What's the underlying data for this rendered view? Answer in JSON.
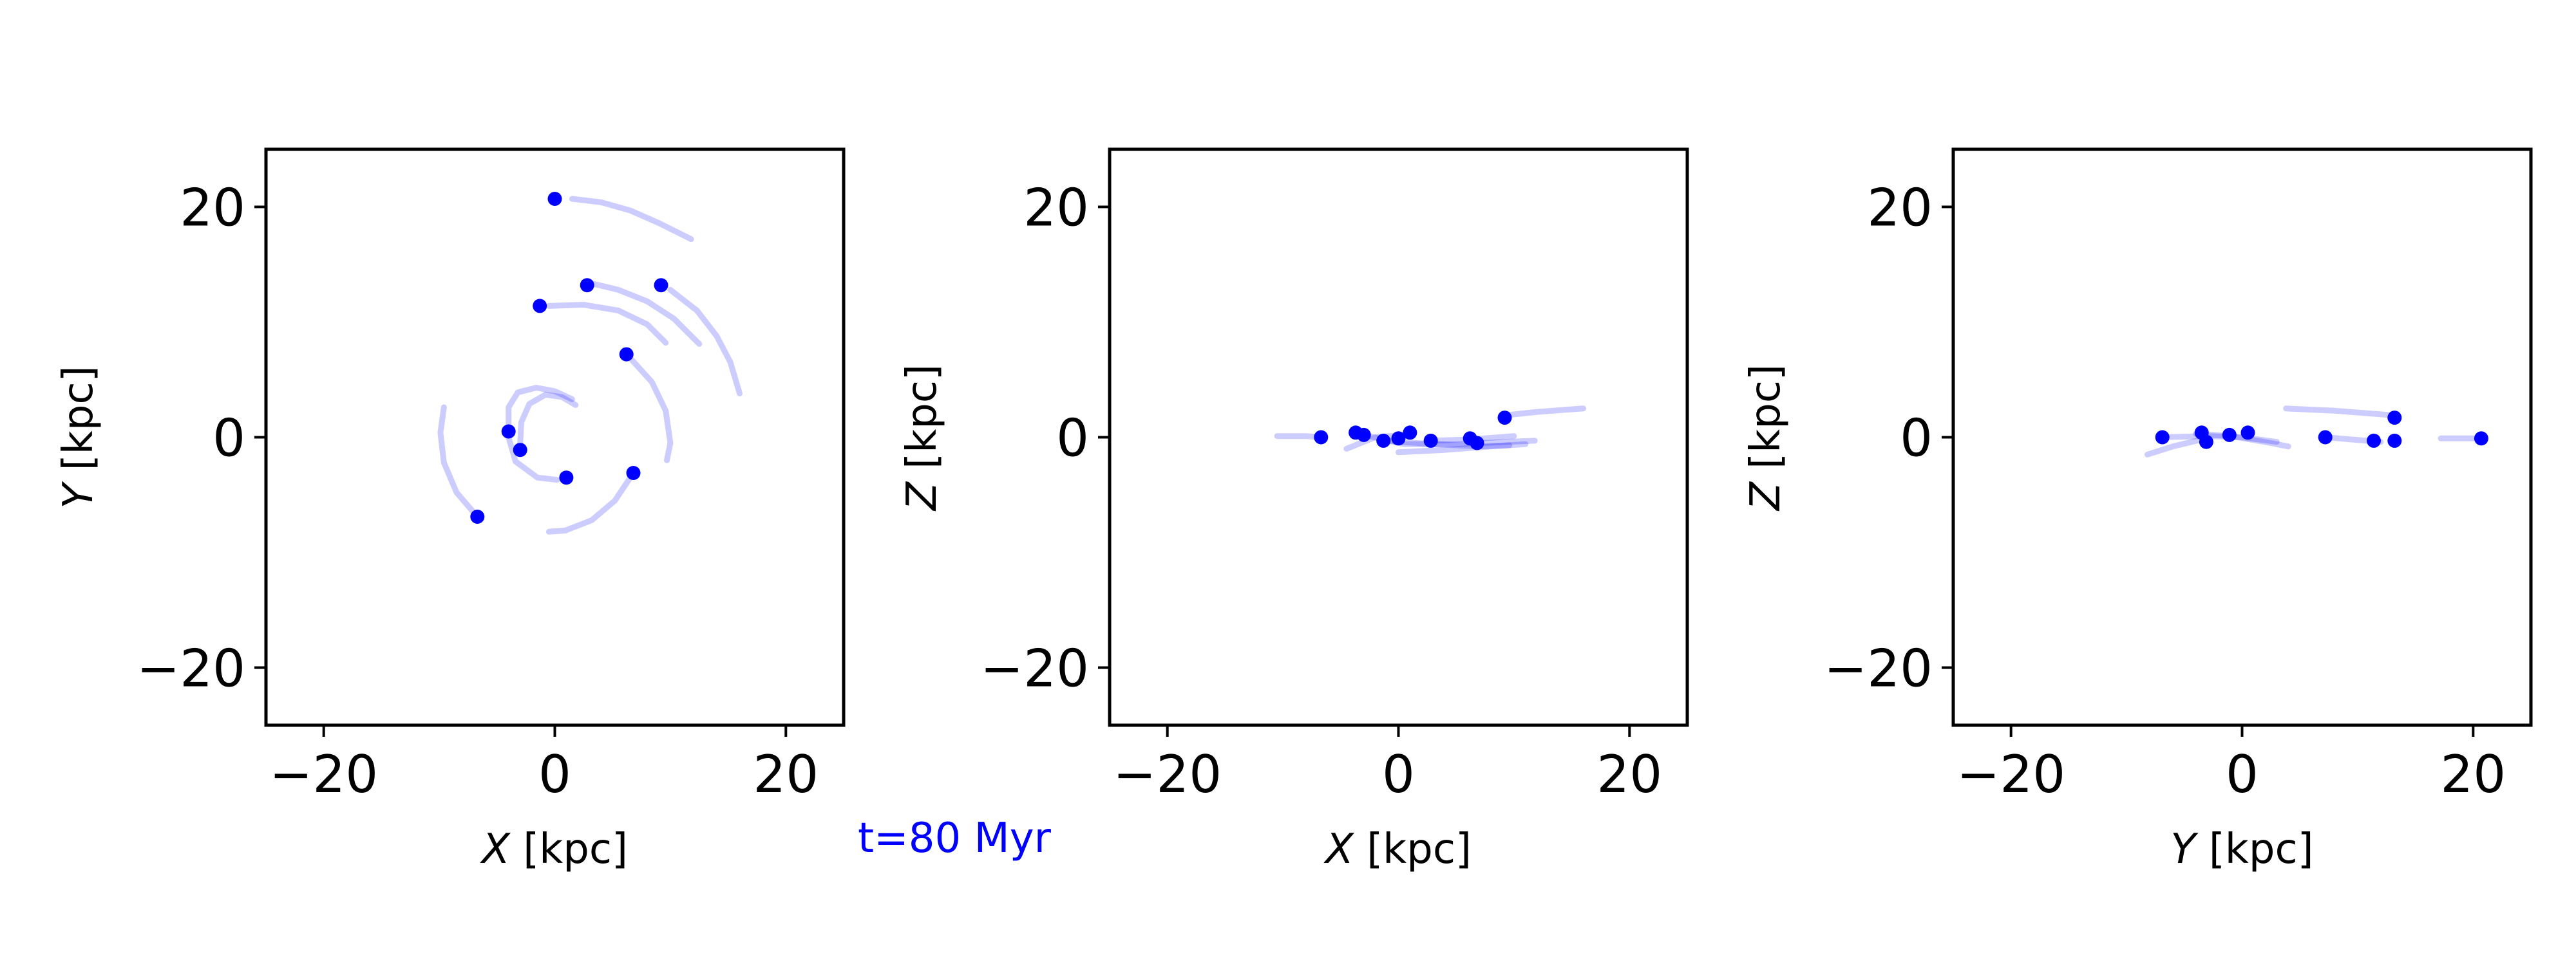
{
  "annotation": {
    "text": "t=80 Myr",
    "color": "#0000ff"
  },
  "colors": {
    "point": "#0000ff",
    "trail": "#0000ff",
    "frame": "#000000"
  },
  "chart_data": [
    {
      "type": "scatter",
      "xlabel_var": "X",
      "xlabel_unit": " [kpc]",
      "ylabel_var": "Y",
      "ylabel_unit": " [kpc]",
      "xlim": [
        -25,
        25
      ],
      "ylim": [
        -25,
        25
      ],
      "xticks": [
        -20,
        0,
        20
      ],
      "yticks": [
        -20,
        0,
        20
      ],
      "grid": false,
      "points": [
        {
          "x": 0.0,
          "y": 20.7
        },
        {
          "x": 2.8,
          "y": 13.2
        },
        {
          "x": 9.2,
          "y": 13.2
        },
        {
          "x": -1.3,
          "y": 11.4
        },
        {
          "x": 6.2,
          "y": 7.2
        },
        {
          "x": -4.0,
          "y": 0.5
        },
        {
          "x": -3.0,
          "y": -1.1
        },
        {
          "x": 1.0,
          "y": -3.5
        },
        {
          "x": 6.8,
          "y": -3.1
        },
        {
          "x": -6.7,
          "y": -6.9
        }
      ],
      "trails": [
        [
          [
            1.5,
            20.7
          ],
          [
            4.0,
            20.4
          ],
          [
            6.5,
            19.7
          ],
          [
            9.0,
            18.6
          ],
          [
            11.8,
            17.2
          ]
        ],
        [
          [
            3.0,
            13.4
          ],
          [
            5.5,
            12.8
          ],
          [
            8.0,
            11.8
          ],
          [
            10.3,
            10.3
          ],
          [
            12.5,
            8.1
          ]
        ],
        [
          [
            10.0,
            12.8
          ],
          [
            12.3,
            11.0
          ],
          [
            14.0,
            8.8
          ],
          [
            15.2,
            6.5
          ],
          [
            16.0,
            3.8
          ]
        ],
        [
          [
            -0.5,
            11.4
          ],
          [
            2.5,
            11.5
          ],
          [
            5.5,
            11.0
          ],
          [
            8.0,
            9.8
          ],
          [
            9.6,
            8.2
          ]
        ],
        [
          [
            6.5,
            6.9
          ],
          [
            8.4,
            4.8
          ],
          [
            9.6,
            2.3
          ],
          [
            10.0,
            -0.5
          ],
          [
            9.7,
            -2.0
          ]
        ],
        [
          [
            -4.0,
            0.9
          ],
          [
            -4.0,
            2.6
          ],
          [
            -3.2,
            3.9
          ],
          [
            -1.6,
            4.3
          ],
          [
            0.0,
            4.0
          ],
          [
            1.5,
            3.3
          ]
        ],
        [
          [
            -3.0,
            -0.6
          ],
          [
            -2.9,
            1.3
          ],
          [
            -2.2,
            2.9
          ],
          [
            -0.8,
            3.7
          ],
          [
            0.6,
            3.5
          ],
          [
            1.8,
            2.8
          ]
        ],
        [
          [
            -4.0,
            0.0
          ],
          [
            -3.4,
            -2.1
          ],
          [
            -1.5,
            -3.5
          ],
          [
            0.2,
            -3.7
          ]
        ],
        [
          [
            6.8,
            -3.1
          ],
          [
            5.2,
            -5.5
          ],
          [
            3.2,
            -7.2
          ],
          [
            0.9,
            -8.1
          ],
          [
            -0.5,
            -8.2
          ]
        ],
        [
          [
            -6.7,
            -6.9
          ],
          [
            -8.5,
            -4.8
          ],
          [
            -9.6,
            -2.2
          ],
          [
            -9.9,
            0.4
          ],
          [
            -9.6,
            2.6
          ]
        ]
      ]
    },
    {
      "type": "scatter",
      "xlabel_var": "X",
      "xlabel_unit": " [kpc]",
      "ylabel_var": "Z",
      "ylabel_unit": " [kpc]",
      "xlim": [
        -25,
        25
      ],
      "ylim": [
        -25,
        25
      ],
      "xticks": [
        -20,
        0,
        20
      ],
      "yticks": [
        -20,
        0,
        20
      ],
      "grid": false,
      "points": [
        {
          "x": -6.7,
          "y": 0.0
        },
        {
          "x": -3.7,
          "y": 0.4
        },
        {
          "x": -3.0,
          "y": 0.2
        },
        {
          "x": -1.3,
          "y": -0.3
        },
        {
          "x": 0.0,
          "y": -0.1
        },
        {
          "x": 1.0,
          "y": 0.4
        },
        {
          "x": 2.8,
          "y": -0.3
        },
        {
          "x": 6.2,
          "y": -0.1
        },
        {
          "x": 6.8,
          "y": -0.5
        },
        {
          "x": 9.2,
          "y": 1.7
        }
      ],
      "trails": [
        [
          [
            9.2,
            1.9
          ],
          [
            12.0,
            2.2
          ],
          [
            16.0,
            2.5
          ]
        ],
        [
          [
            -10.5,
            0.1
          ],
          [
            -8.0,
            0.1
          ],
          [
            -6.7,
            0.0
          ]
        ],
        [
          [
            -4.5,
            -1.0
          ],
          [
            -2.0,
            0.0
          ],
          [
            0.5,
            0.2
          ]
        ],
        [
          [
            0.0,
            -1.3
          ],
          [
            4.0,
            -1.1
          ],
          [
            8.0,
            -0.8
          ],
          [
            11.0,
            -0.6
          ]
        ],
        [
          [
            -3.0,
            0.2
          ],
          [
            0.5,
            -0.6
          ],
          [
            5.0,
            -0.6
          ],
          [
            11.8,
            -0.3
          ]
        ],
        [
          [
            2.8,
            -0.3
          ],
          [
            6.0,
            -0.2
          ],
          [
            10.0,
            0.1
          ]
        ],
        [
          [
            -1.3,
            -0.3
          ],
          [
            3.0,
            -0.6
          ],
          [
            7.0,
            -0.8
          ],
          [
            9.6,
            -0.7
          ]
        ]
      ]
    },
    {
      "type": "scatter",
      "xlabel_var": "Y",
      "xlabel_unit": " [kpc]",
      "ylabel_var": "Z",
      "ylabel_unit": " [kpc]",
      "xlim": [
        -25,
        25
      ],
      "ylim": [
        -25,
        25
      ],
      "xticks": [
        -20,
        0,
        20
      ],
      "yticks": [
        -20,
        0,
        20
      ],
      "grid": false,
      "points": [
        {
          "x": -6.9,
          "y": 0.0
        },
        {
          "x": -3.5,
          "y": 0.4
        },
        {
          "x": -3.1,
          "y": -0.4
        },
        {
          "x": -1.1,
          "y": 0.2
        },
        {
          "x": 0.5,
          "y": 0.4
        },
        {
          "x": 7.2,
          "y": 0.0
        },
        {
          "x": 11.4,
          "y": -0.3
        },
        {
          "x": 13.2,
          "y": 1.7
        },
        {
          "x": 13.2,
          "y": -0.3
        },
        {
          "x": 20.7,
          "y": -0.1
        }
      ],
      "trails": [
        [
          [
            3.8,
            2.5
          ],
          [
            8.0,
            2.3
          ],
          [
            13.2,
            1.9
          ]
        ],
        [
          [
            -8.2,
            -1.5
          ],
          [
            -6.0,
            -0.8
          ],
          [
            -3.5,
            -0.2
          ]
        ],
        [
          [
            -7.0,
            0.0
          ],
          [
            -3.0,
            0.1
          ],
          [
            0.0,
            0.0
          ],
          [
            3.0,
            -0.4
          ]
        ],
        [
          [
            -4.0,
            0.3
          ],
          [
            -1.0,
            0.1
          ],
          [
            2.5,
            -0.5
          ],
          [
            4.0,
            -0.8
          ]
        ],
        [
          [
            7.2,
            0.0
          ],
          [
            9.6,
            -0.2
          ],
          [
            12.0,
            -0.4
          ]
        ],
        [
          [
            17.2,
            -0.1
          ],
          [
            19.0,
            -0.1
          ],
          [
            20.7,
            -0.1
          ]
        ]
      ]
    }
  ]
}
